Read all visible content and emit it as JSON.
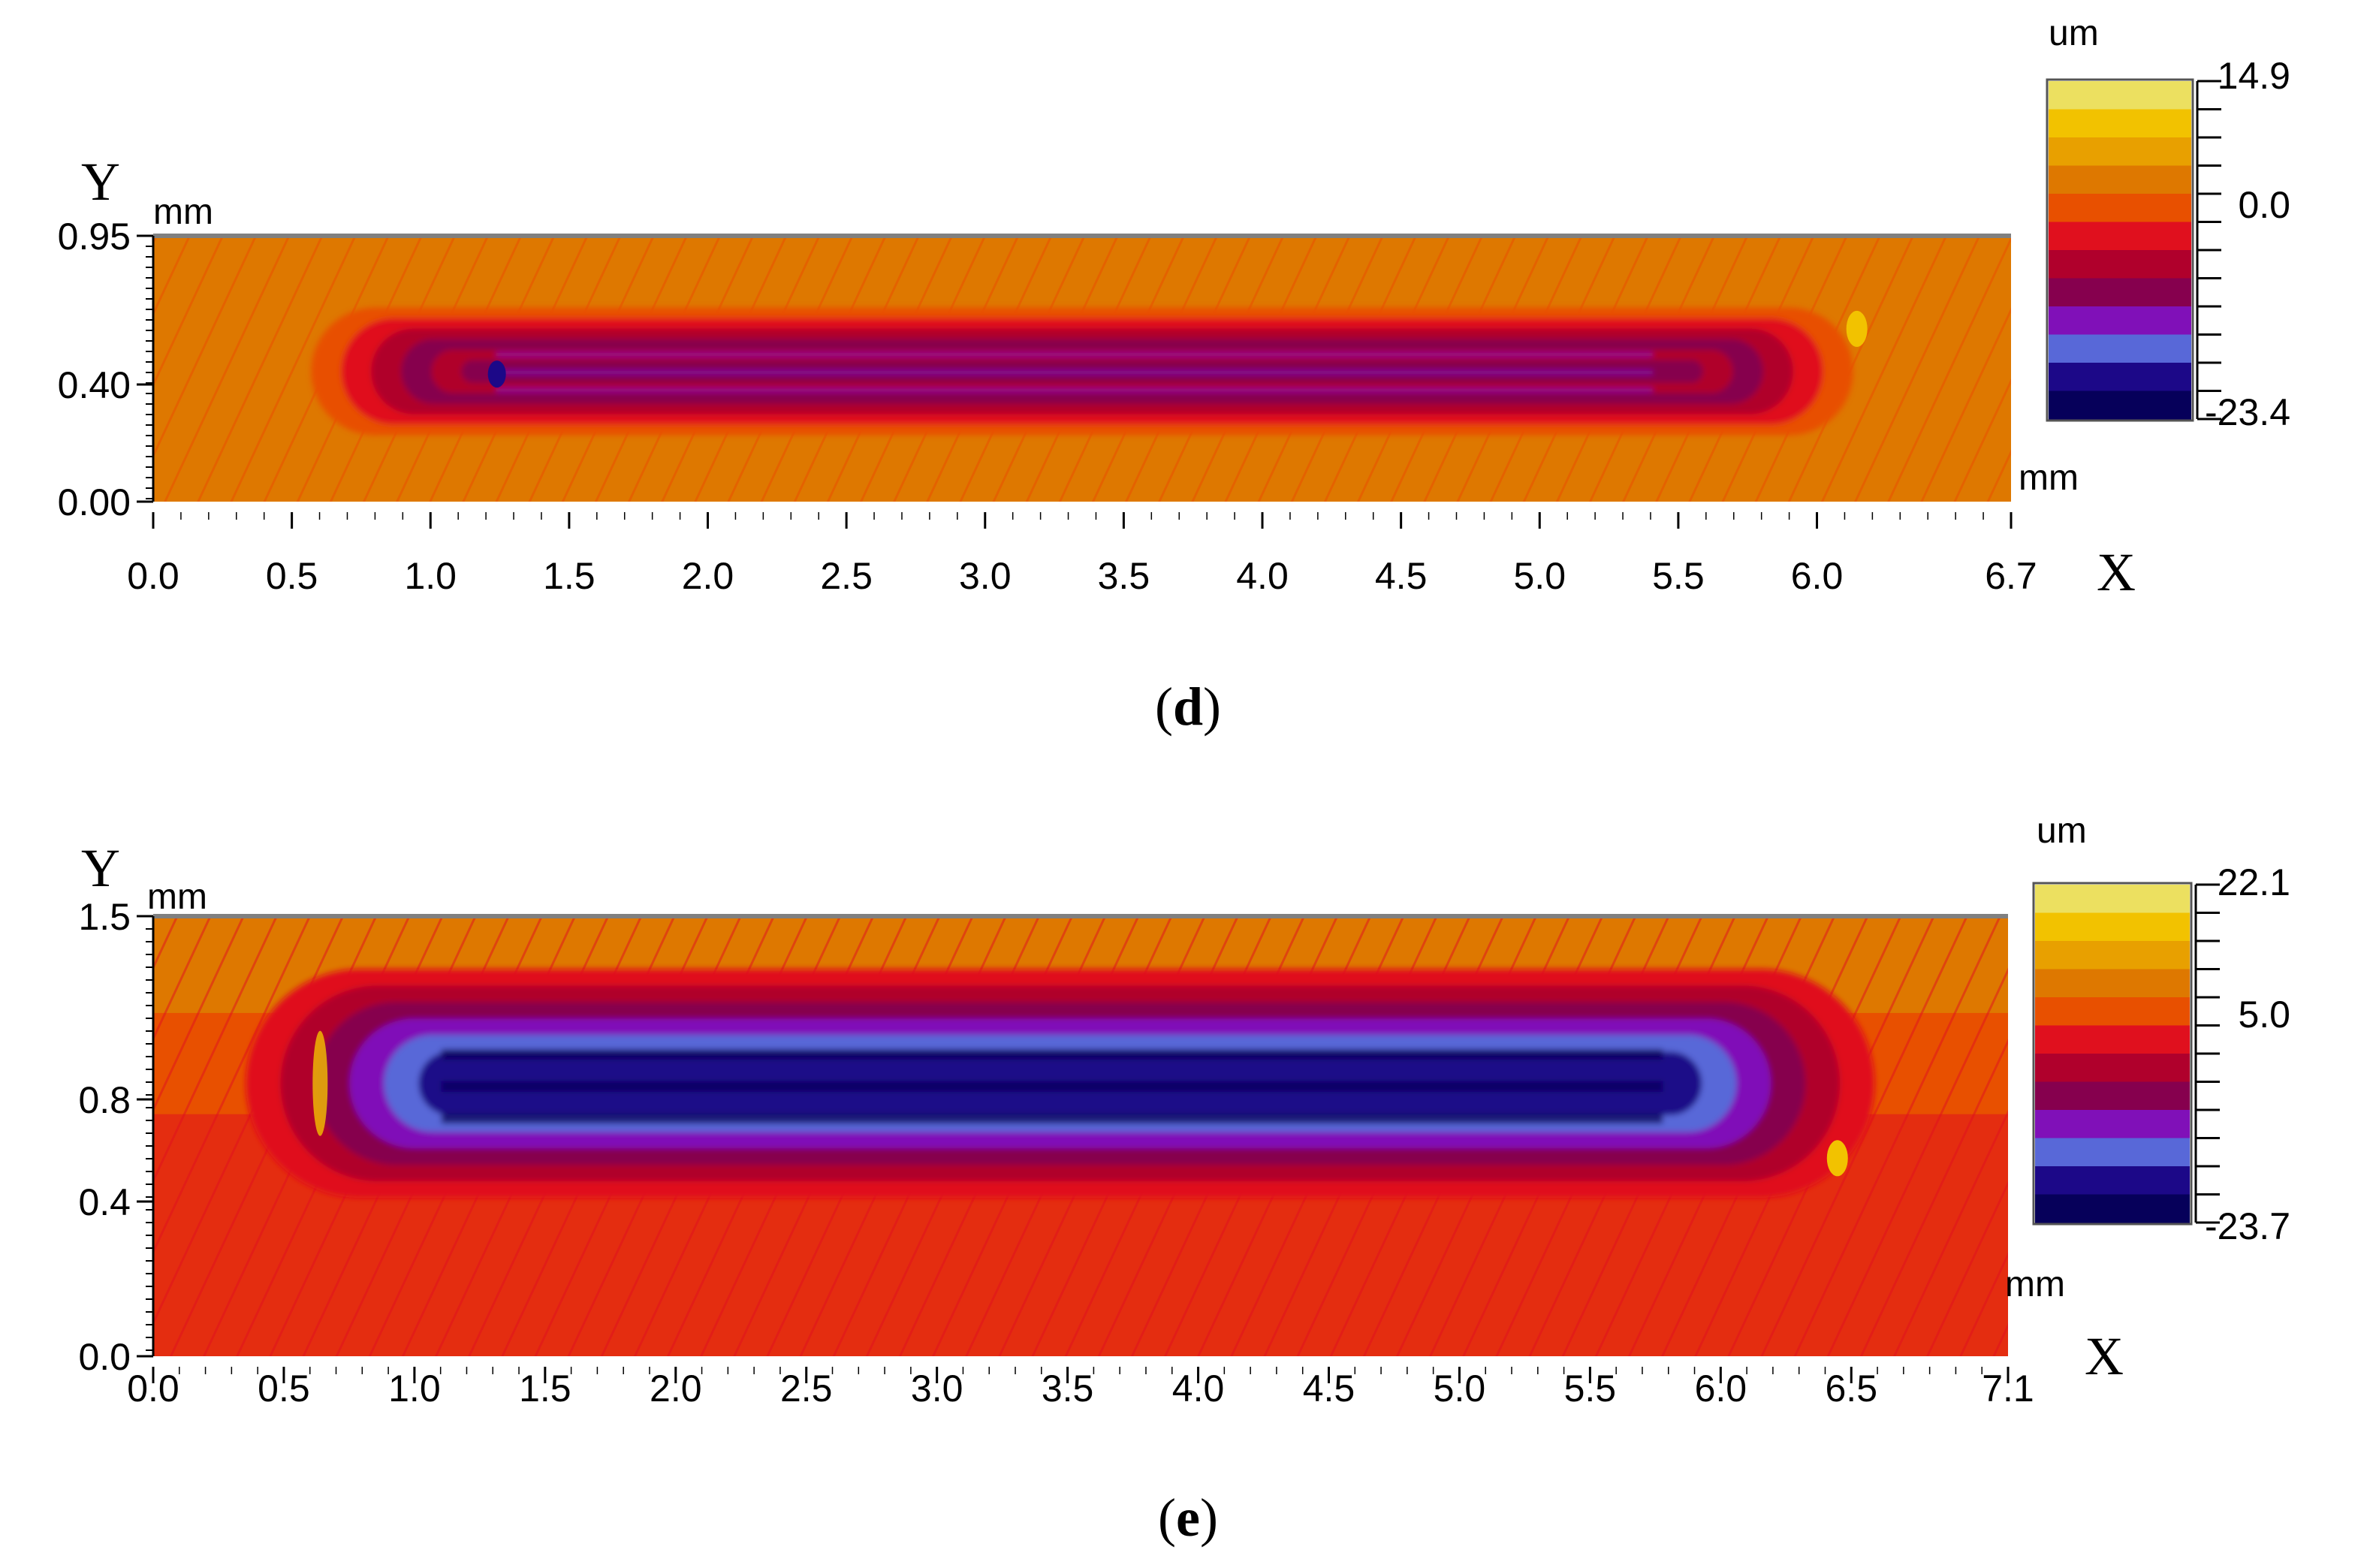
{
  "chart_data": [
    {
      "type": "heatmap",
      "panel_label": "d",
      "x_axis_letter": "X",
      "y_axis_letter": "Y",
      "x_unit": "mm",
      "y_unit": "mm",
      "z_unit": "um",
      "xlim": [
        0.0,
        6.7
      ],
      "ylim": [
        0.0,
        0.95
      ],
      "x_ticks": [
        "0.0",
        "0.5",
        "1.0",
        "1.5",
        "2.0",
        "2.5",
        "3.0",
        "3.5",
        "4.0",
        "4.5",
        "5.0",
        "5.5",
        "6.0",
        "6.7"
      ],
      "y_ticks": [
        "0.95",
        "0.40",
        "0.00"
      ],
      "colorbar_ticks": [
        "14.9",
        "0.0",
        "-23.4"
      ],
      "colorbar_range": [
        -23.4,
        14.9
      ],
      "colorbar_colors": [
        "#ece060",
        "#f2c200",
        "#e8a000",
        "#de7800",
        "#e85000",
        "#e0101e",
        "#b0002c",
        "#86004e",
        "#8010b8",
        "#5868d8",
        "#1c0888",
        "#06005a"
      ],
      "background_color": "#de7800",
      "groove": {
        "x_start": 0.5,
        "x_end": 6.2,
        "y_center": 0.5,
        "min_depth": -23.4
      }
    },
    {
      "type": "heatmap",
      "panel_label": "e",
      "x_axis_letter": "X",
      "y_axis_letter": "Y",
      "x_unit": "mm",
      "y_unit": "mm",
      "z_unit": "um",
      "xlim": [
        0.0,
        7.1
      ],
      "ylim": [
        0.0,
        1.5
      ],
      "x_ticks": [
        "0.0",
        "0.5",
        "1.0",
        "1.5",
        "2.0",
        "2.5",
        "3.0",
        "3.5",
        "4.0",
        "4.5",
        "5.0",
        "5.5",
        "6.0",
        "6.5",
        "7.1"
      ],
      "y_ticks": [
        "1.5",
        "0.8",
        "0.4",
        "0.0"
      ],
      "colorbar_ticks": [
        "22.1",
        "5.0",
        "-23.7"
      ],
      "colorbar_range": [
        -23.7,
        22.1
      ],
      "colorbar_colors": [
        "#ece060",
        "#f2c200",
        "#e8a000",
        "#de7800",
        "#e85000",
        "#e0101e",
        "#b0002c",
        "#86004e",
        "#8010b8",
        "#5868d8",
        "#1c0888",
        "#06005a"
      ],
      "background_color": "#e85000",
      "groove": {
        "x_start": 0.65,
        "x_end": 6.5,
        "y_center": 0.97,
        "min_depth": -23.7
      }
    }
  ]
}
